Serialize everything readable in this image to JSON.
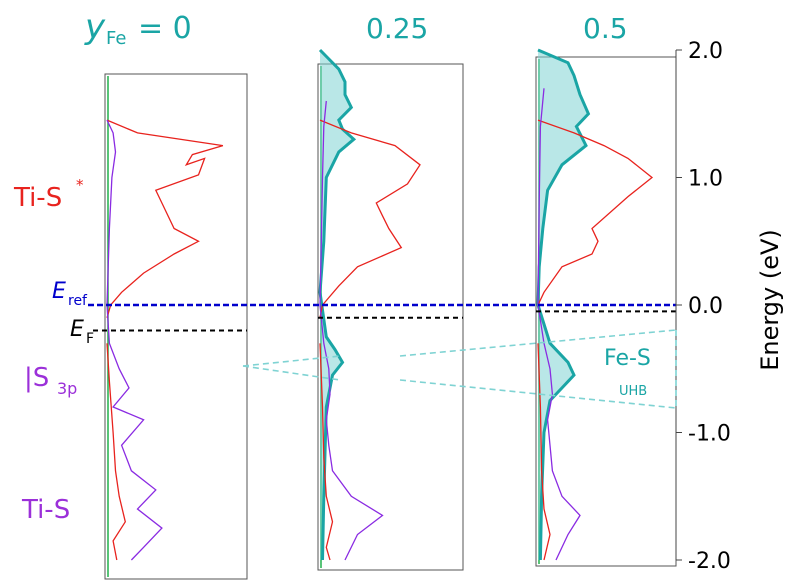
{
  "colors": {
    "teal": "#1aa5a5",
    "teal_fill": "#7fd3d3",
    "red": "#e8231e",
    "purple": "#8a2be2",
    "green": "#22b14c",
    "blue": "#0000cc",
    "black": "#000000",
    "label_red": "#e8231e",
    "label_purple": "#9b30d9"
  },
  "header": {
    "y_symbol": "y",
    "y_sub": "Fe",
    "eq": "= 0",
    "col2": "0.25",
    "col3": "0.5"
  },
  "labels": {
    "ti_s_star": "Ti-S",
    "star": "*",
    "s3p_bar": "|S",
    "s3p_sub": "3p",
    "ti_s": "Ti-S",
    "e_ref": "E",
    "e_ref_sub": "ref",
    "e_f": "E",
    "e_f_sub": "F",
    "fe_s": "Fe-S",
    "uhb": "UHB"
  },
  "chart_data": {
    "type": "line",
    "ylabel": "Energy (eV)",
    "ylim": [
      -2.0,
      2.0
    ],
    "yticks": [
      2.0,
      1.0,
      0.0,
      -1.0,
      -2.0
    ],
    "ytick_labels": [
      "2.0",
      "1.0",
      "0.0",
      "-1.0",
      "-2.0"
    ],
    "reference_lines": [
      {
        "name": "E_ref",
        "energy": 0.0,
        "style": "dashed",
        "color": "#0000cc"
      }
    ],
    "panels": [
      {
        "y_Fe": "0",
        "fermi_energy": -0.2,
        "ti_s_star": [
          [
            1.45,
            0
          ],
          [
            1.35,
            0.25
          ],
          [
            1.25,
            0.95
          ],
          [
            1.18,
            0.7
          ],
          [
            1.1,
            0.65
          ],
          [
            1.15,
            0.8
          ],
          [
            1.02,
            0.75
          ],
          [
            0.9,
            0.4
          ],
          [
            0.8,
            0.45
          ],
          [
            0.6,
            0.55
          ],
          [
            0.5,
            0.75
          ],
          [
            0.4,
            0.55
          ],
          [
            0.25,
            0.3
          ],
          [
            0.1,
            0.12
          ],
          [
            0.0,
            0.03
          ],
          [
            -0.1,
            0.0
          ]
        ],
        "s3p": [
          [
            1.45,
            0
          ],
          [
            1.35,
            0.05
          ],
          [
            1.2,
            0.07
          ],
          [
            1.0,
            0.04
          ],
          [
            0.6,
            0.02
          ],
          [
            0.3,
            0.01
          ],
          [
            0.0,
            0.0
          ],
          [
            -0.3,
            0.02
          ],
          [
            -0.5,
            0.1
          ],
          [
            -0.65,
            0.18
          ],
          [
            -0.8,
            0.05
          ],
          [
            -0.9,
            0.3
          ],
          [
            -1.1,
            0.12
          ],
          [
            -1.3,
            0.2
          ],
          [
            -1.45,
            0.4
          ],
          [
            -1.6,
            0.25
          ],
          [
            -1.75,
            0.45
          ],
          [
            -1.9,
            0.3
          ],
          [
            -2.0,
            0.2
          ]
        ],
        "ti_s": [
          [
            -0.3,
            0.0
          ],
          [
            -0.6,
            0.02
          ],
          [
            -1.0,
            0.05
          ],
          [
            -1.3,
            0.07
          ],
          [
            -1.5,
            0.1
          ],
          [
            -1.7,
            0.15
          ],
          [
            -1.85,
            0.05
          ],
          [
            -2.0,
            0.08
          ]
        ],
        "fe_s": []
      },
      {
        "y_Fe": "0.25",
        "fermi_energy": -0.1,
        "ti_s_star": [
          [
            1.45,
            0
          ],
          [
            1.35,
            0.25
          ],
          [
            1.25,
            0.6
          ],
          [
            1.1,
            0.8
          ],
          [
            0.95,
            0.7
          ],
          [
            0.8,
            0.45
          ],
          [
            0.7,
            0.5
          ],
          [
            0.6,
            0.55
          ],
          [
            0.45,
            0.65
          ],
          [
            0.3,
            0.3
          ],
          [
            0.15,
            0.15
          ],
          [
            0.0,
            0.02
          ],
          [
            -0.1,
            0.0
          ]
        ],
        "s3p": [
          [
            1.6,
            0.05
          ],
          [
            1.4,
            0.03
          ],
          [
            1.0,
            0.02
          ],
          [
            0.5,
            0.01
          ],
          [
            0.0,
            0.0
          ],
          [
            -0.3,
            0.03
          ],
          [
            -0.5,
            0.07
          ],
          [
            -0.7,
            0.08
          ],
          [
            -0.9,
            0.05
          ],
          [
            -1.1,
            0.07
          ],
          [
            -1.3,
            0.1
          ],
          [
            -1.5,
            0.25
          ],
          [
            -1.65,
            0.5
          ],
          [
            -1.8,
            0.3
          ],
          [
            -2.0,
            0.2
          ]
        ],
        "ti_s": [
          [
            -0.3,
            0.0
          ],
          [
            -0.8,
            0.02
          ],
          [
            -1.2,
            0.03
          ],
          [
            -1.5,
            0.05
          ],
          [
            -1.7,
            0.1
          ],
          [
            -1.9,
            0.05
          ],
          [
            -2.0,
            0.08
          ]
        ],
        "fe_s": [
          [
            2.0,
            0.0
          ],
          [
            1.85,
            0.15
          ],
          [
            1.75,
            0.2
          ],
          [
            1.65,
            0.2
          ],
          [
            1.55,
            0.25
          ],
          [
            1.45,
            0.15
          ],
          [
            1.38,
            0.18
          ],
          [
            1.3,
            0.27
          ],
          [
            1.2,
            0.15
          ],
          [
            1.0,
            0.05
          ],
          [
            0.5,
            0.03
          ],
          [
            0.1,
            0.0
          ],
          [
            -0.25,
            0.05
          ],
          [
            -0.35,
            0.12
          ],
          [
            -0.45,
            0.18
          ],
          [
            -0.55,
            0.1
          ],
          [
            -0.8,
            0.05
          ],
          [
            -1.5,
            0.03
          ],
          [
            -2.0,
            0.02
          ]
        ]
      },
      {
        "y_Fe": "0.5",
        "fermi_energy": -0.05,
        "ti_s_star": [
          [
            1.45,
            0
          ],
          [
            1.35,
            0.3
          ],
          [
            1.25,
            0.55
          ],
          [
            1.15,
            0.75
          ],
          [
            1.0,
            0.95
          ],
          [
            0.85,
            0.75
          ],
          [
            0.6,
            0.45
          ],
          [
            0.5,
            0.5
          ],
          [
            0.4,
            0.45
          ],
          [
            0.3,
            0.2
          ],
          [
            0.1,
            0.05
          ],
          [
            0.0,
            0.0
          ]
        ],
        "s3p": [
          [
            1.7,
            0.05
          ],
          [
            1.4,
            0.02
          ],
          [
            0.8,
            0.01
          ],
          [
            0.0,
            0.0
          ],
          [
            -0.3,
            0.05
          ],
          [
            -0.5,
            0.1
          ],
          [
            -0.7,
            0.12
          ],
          [
            -0.9,
            0.08
          ],
          [
            -1.1,
            0.1
          ],
          [
            -1.3,
            0.12
          ],
          [
            -1.5,
            0.2
          ],
          [
            -1.65,
            0.35
          ],
          [
            -1.8,
            0.25
          ],
          [
            -2.0,
            0.15
          ]
        ],
        "ti_s": [
          [
            -0.3,
            0.0
          ],
          [
            -0.8,
            0.02
          ],
          [
            -1.3,
            0.03
          ],
          [
            -1.6,
            0.05
          ],
          [
            -1.8,
            0.1
          ],
          [
            -2.0,
            0.05
          ]
        ],
        "fe_s": [
          [
            2.0,
            0.0
          ],
          [
            1.9,
            0.25
          ],
          [
            1.8,
            0.3
          ],
          [
            1.65,
            0.35
          ],
          [
            1.5,
            0.42
          ],
          [
            1.4,
            0.32
          ],
          [
            1.25,
            0.4
          ],
          [
            1.1,
            0.2
          ],
          [
            0.9,
            0.08
          ],
          [
            0.6,
            0.04
          ],
          [
            0.3,
            0.01
          ],
          [
            0.0,
            0.0
          ],
          [
            -0.3,
            0.1
          ],
          [
            -0.45,
            0.25
          ],
          [
            -0.55,
            0.3
          ],
          [
            -0.65,
            0.2
          ],
          [
            -0.75,
            0.1
          ],
          [
            -1.0,
            0.05
          ],
          [
            -1.5,
            0.03
          ],
          [
            -2.0,
            0.02
          ]
        ]
      }
    ]
  }
}
